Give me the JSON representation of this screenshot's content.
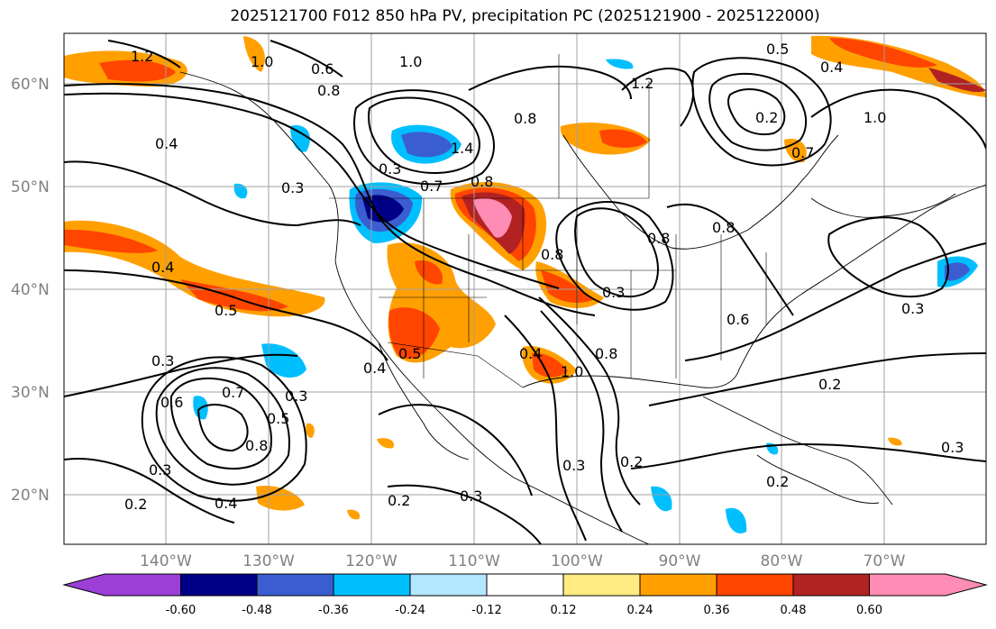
{
  "title": "2025121700 F012 850 hPa PV, precipitation PC (2025121900 - 2025122000)",
  "lat_labels": [
    "60°N",
    "50°N",
    "40°N",
    "30°N",
    "20°N"
  ],
  "lon_labels": [
    "140°W",
    "130°W",
    "120°W",
    "110°W",
    "100°W",
    "90°W",
    "80°W",
    "70°W"
  ],
  "contour_labels": [
    "1.2",
    "1.0",
    "0.8",
    "0.6",
    "0.5",
    "0.4",
    "0.3",
    "0.2",
    "0.7",
    "1.4"
  ],
  "colorbar": {
    "colors": [
      "#9b3fd6",
      "#000087",
      "#3a5ed0",
      "#00bfff",
      "#b3e6ff",
      "#ffffff",
      "#ffeb80",
      "#ffa000",
      "#ff4500",
      "#b22222",
      "#ff8cb4"
    ],
    "ticks": [
      "-0.60",
      "-0.48",
      "-0.36",
      "-0.24",
      "-0.12",
      "0.12",
      "0.24",
      "0.36",
      "0.48",
      "0.60"
    ]
  }
}
